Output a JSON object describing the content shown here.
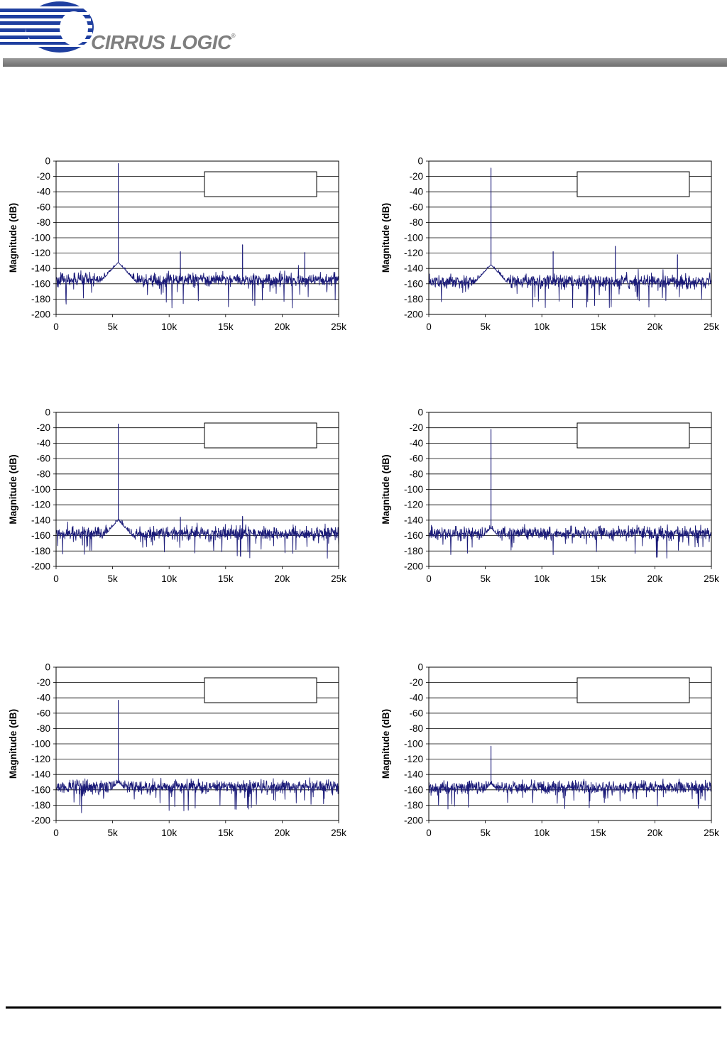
{
  "header": {
    "logo_text": "CIRRUS LOGIC",
    "registered_mark": "®",
    "colors": {
      "logo_blue": "#1f3fa0",
      "logo_gray": "#7f7f7f",
      "bar_gray": "#808080"
    }
  },
  "chart_style": {
    "trace_color": "#1a1a78",
    "grid_color": "#000000"
  },
  "chart_data": [
    {
      "type": "line",
      "ylabel": "Magnitude (dB)",
      "xlim": [
        0,
        25000
      ],
      "ylim": [
        -200,
        0
      ],
      "xticks": [
        "0",
        "5k",
        "10k",
        "15k",
        "20k",
        "25k"
      ],
      "yticks": [
        "0",
        "-20",
        "-40",
        "-60",
        "-80",
        "-100",
        "-120",
        "-140",
        "-160",
        "-180",
        "-200"
      ],
      "grid": "horizontal",
      "legend_box": "top-right (empty)",
      "noise_floor_db": -155,
      "noise_low_db": -192,
      "skirt_peak_db": -132,
      "fundamental": {
        "x": 5500,
        "y": -3
      },
      "spurs": [
        {
          "x": 11000,
          "y": -118
        },
        {
          "x": 16500,
          "y": -109
        },
        {
          "x": 22000,
          "y": -119
        }
      ]
    },
    {
      "type": "line",
      "ylabel": "Magnitude (dB)",
      "xlim": [
        0,
        25000
      ],
      "ylim": [
        -200,
        0
      ],
      "xticks": [
        "0",
        "5k",
        "10k",
        "15k",
        "20k",
        "25k"
      ],
      "yticks": [
        "0",
        "-20",
        "-40",
        "-60",
        "-80",
        "-100",
        "-120",
        "-140",
        "-160",
        "-180",
        "-200"
      ],
      "grid": "horizontal",
      "legend_box": "top-right (empty)",
      "noise_floor_db": -157,
      "noise_low_db": -192,
      "skirt_peak_db": -135,
      "fundamental": {
        "x": 5500,
        "y": -9
      },
      "spurs": [
        {
          "x": 11000,
          "y": -118
        },
        {
          "x": 16500,
          "y": -111
        },
        {
          "x": 22000,
          "y": -122
        }
      ]
    },
    {
      "type": "line",
      "ylabel": "Magnitude (dB)",
      "xlim": [
        0,
        25000
      ],
      "ylim": [
        -200,
        0
      ],
      "xticks": [
        "0",
        "5k",
        "10k",
        "15k",
        "20k",
        "25k"
      ],
      "yticks": [
        "0",
        "-20",
        "-40",
        "-60",
        "-80",
        "-100",
        "-120",
        "-140",
        "-160",
        "-180",
        "-200"
      ],
      "grid": "horizontal",
      "legend_box": "top-right (empty)",
      "noise_floor_db": -157,
      "noise_low_db": -190,
      "skirt_peak_db": -140,
      "fundamental": {
        "x": 5500,
        "y": -15
      },
      "spurs": [
        {
          "x": 11000,
          "y": -136
        },
        {
          "x": 16500,
          "y": -135
        }
      ]
    },
    {
      "type": "line",
      "ylabel": "Magnitude (dB)",
      "xlim": [
        0,
        25000
      ],
      "ylim": [
        -200,
        0
      ],
      "xticks": [
        "0",
        "5k",
        "10k",
        "15k",
        "20k",
        "25k"
      ],
      "yticks": [
        "0",
        "-20",
        "-40",
        "-60",
        "-80",
        "-100",
        "-120",
        "-140",
        "-160",
        "-180",
        "-200"
      ],
      "grid": "horizontal",
      "legend_box": "top-right (empty)",
      "noise_floor_db": -157,
      "noise_low_db": -190,
      "skirt_peak_db": -150,
      "fundamental": {
        "x": 5500,
        "y": -22
      },
      "spurs": []
    },
    {
      "type": "line",
      "ylabel": "Magnitude (dB)",
      "xlim": [
        0,
        25000
      ],
      "ylim": [
        -200,
        0
      ],
      "xticks": [
        "0",
        "5k",
        "10k",
        "15k",
        "20k",
        "25k"
      ],
      "yticks": [
        "0",
        "-20",
        "-40",
        "-60",
        "-80",
        "-100",
        "-120",
        "-140",
        "-160",
        "-180",
        "-200"
      ],
      "grid": "horizontal",
      "legend_box": "top-right (empty)",
      "noise_floor_db": -156,
      "noise_low_db": -190,
      "skirt_peak_db": -150,
      "fundamental": {
        "x": 5500,
        "y": -43
      },
      "spurs": []
    },
    {
      "type": "line",
      "ylabel": "Magnitude (dB)",
      "xlim": [
        0,
        25000
      ],
      "ylim": [
        -200,
        0
      ],
      "xticks": [
        "0",
        "5k",
        "10k",
        "15k",
        "20k",
        "25k"
      ],
      "yticks": [
        "0",
        "-20",
        "-40",
        "-60",
        "-80",
        "-100",
        "-120",
        "-140",
        "-160",
        "-180",
        "-200"
      ],
      "grid": "horizontal",
      "legend_box": "top-right (empty)",
      "noise_floor_db": -157,
      "noise_low_db": -190,
      "skirt_peak_db": -152,
      "fundamental": {
        "x": 5500,
        "y": -103
      },
      "spurs": []
    }
  ]
}
